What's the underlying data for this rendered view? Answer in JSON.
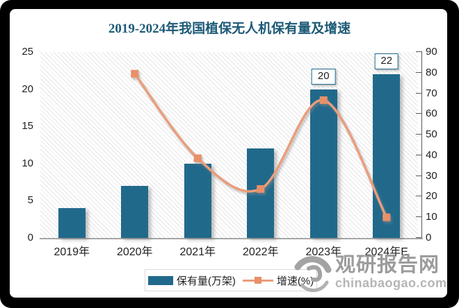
{
  "title": {
    "text": "2019-2024年我国植保无人机保有量及增速",
    "color": "#1D5A77"
  },
  "chart_data": {
    "type": "bar",
    "combo": "bar+line",
    "title": "2019-2024年我国植保无人机保有量及增速",
    "categories": [
      "2019年",
      "2020年",
      "2021年",
      "2022年",
      "2023年",
      "2024年E"
    ],
    "series": [
      {
        "name": "保有量(万架)",
        "type": "bar",
        "axis": "left",
        "color": "#21698B",
        "values": [
          4,
          7,
          10,
          12,
          20,
          22
        ],
        "data_labels": [
          null,
          null,
          null,
          null,
          "20",
          "22"
        ]
      },
      {
        "name": "增速(%)",
        "type": "line",
        "axis": "right",
        "color": "#EA9D7B",
        "marker_color": "#E8906A",
        "values": [
          null,
          79.5,
          38.6,
          23.7,
          66.7,
          10
        ]
      }
    ],
    "left_axis": {
      "min": 0,
      "max": 25,
      "ticks": [
        0,
        5,
        10,
        15,
        20,
        25
      ]
    },
    "right_axis": {
      "min": 0,
      "max": 90,
      "ticks": [
        0,
        10,
        20,
        30,
        40,
        50,
        60,
        70,
        80,
        90
      ]
    },
    "legend_position": "bottom",
    "grid": false,
    "plot_background": "diagonal-hatch"
  },
  "legend": {
    "items": [
      {
        "label": "保有量(万架)",
        "swatch": "bar",
        "color": "#21698B"
      },
      {
        "label": "增速(%)",
        "swatch": "line",
        "color": "#EA9D7B",
        "marker_color": "#E8906A"
      }
    ]
  },
  "watermark": {
    "site_name": "观研报告网",
    "site_url": "chinabaogao.com"
  }
}
